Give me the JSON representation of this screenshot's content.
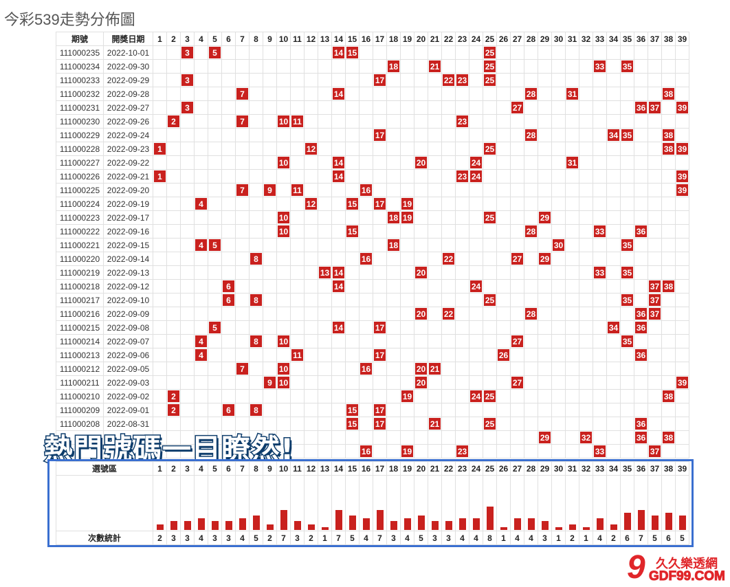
{
  "title": "今彩539走勢分佈圖",
  "table": {
    "headers": {
      "issue": "期號",
      "date": "開獎日期"
    },
    "numbers": [
      1,
      2,
      3,
      4,
      5,
      6,
      7,
      8,
      9,
      10,
      11,
      12,
      13,
      14,
      15,
      16,
      17,
      18,
      19,
      20,
      21,
      22,
      23,
      24,
      25,
      26,
      27,
      28,
      29,
      30,
      31,
      32,
      33,
      34,
      35,
      36,
      37,
      38,
      39
    ],
    "rows": [
      {
        "issue": "111000235",
        "date": "2022-10-01",
        "numbers": [
          3,
          5,
          14,
          15,
          25
        ]
      },
      {
        "issue": "111000234",
        "date": "2022-09-30",
        "numbers": [
          18,
          21,
          25,
          33,
          35
        ]
      },
      {
        "issue": "111000233",
        "date": "2022-09-29",
        "numbers": [
          3,
          17,
          22,
          23,
          25
        ]
      },
      {
        "issue": "111000232",
        "date": "2022-09-28",
        "numbers": [
          7,
          14,
          28,
          31,
          38
        ]
      },
      {
        "issue": "111000231",
        "date": "2022-09-27",
        "numbers": [
          3,
          27,
          36,
          37,
          39
        ]
      },
      {
        "issue": "111000230",
        "date": "2022-09-26",
        "numbers": [
          2,
          7,
          10,
          11,
          23
        ]
      },
      {
        "issue": "111000229",
        "date": "2022-09-24",
        "numbers": [
          17,
          28,
          34,
          35,
          38
        ]
      },
      {
        "issue": "111000228",
        "date": "2022-09-23",
        "numbers": [
          1,
          12,
          25,
          38,
          39
        ]
      },
      {
        "issue": "111000227",
        "date": "2022-09-22",
        "numbers": [
          10,
          14,
          20,
          24,
          31
        ]
      },
      {
        "issue": "111000226",
        "date": "2022-09-21",
        "numbers": [
          1,
          14,
          23,
          24,
          39
        ]
      },
      {
        "issue": "111000225",
        "date": "2022-09-20",
        "numbers": [
          7,
          9,
          11,
          16,
          39
        ]
      },
      {
        "issue": "111000224",
        "date": "2022-09-19",
        "numbers": [
          4,
          12,
          15,
          17,
          19
        ]
      },
      {
        "issue": "111000223",
        "date": "2022-09-17",
        "numbers": [
          10,
          18,
          19,
          25,
          29
        ]
      },
      {
        "issue": "111000222",
        "date": "2022-09-16",
        "numbers": [
          10,
          15,
          28,
          33,
          36
        ]
      },
      {
        "issue": "111000221",
        "date": "2022-09-15",
        "numbers": [
          4,
          5,
          18,
          30,
          35
        ]
      },
      {
        "issue": "111000220",
        "date": "2022-09-14",
        "numbers": [
          8,
          16,
          22,
          27,
          29
        ]
      },
      {
        "issue": "111000219",
        "date": "2022-09-13",
        "numbers": [
          13,
          14,
          20,
          33,
          35
        ]
      },
      {
        "issue": "111000218",
        "date": "2022-09-12",
        "numbers": [
          6,
          14,
          24,
          37,
          38
        ]
      },
      {
        "issue": "111000217",
        "date": "2022-09-10",
        "numbers": [
          6,
          8,
          25,
          35,
          37
        ]
      },
      {
        "issue": "111000216",
        "date": "2022-09-09",
        "numbers": [
          20,
          22,
          28,
          36,
          37
        ]
      },
      {
        "issue": "111000215",
        "date": "2022-09-08",
        "numbers": [
          5,
          14,
          17,
          34,
          36
        ]
      },
      {
        "issue": "111000214",
        "date": "2022-09-07",
        "numbers": [
          4,
          8,
          10,
          27,
          35
        ]
      },
      {
        "issue": "111000213",
        "date": "2022-09-06",
        "numbers": [
          4,
          11,
          17,
          26,
          36
        ]
      },
      {
        "issue": "111000212",
        "date": "2022-09-05",
        "numbers": [
          7,
          10,
          16,
          20,
          21
        ]
      },
      {
        "issue": "111000211",
        "date": "2022-09-03",
        "numbers": [
          9,
          10,
          20,
          27,
          39
        ]
      },
      {
        "issue": "111000210",
        "date": "2022-09-02",
        "numbers": [
          2,
          19,
          24,
          25,
          38
        ]
      },
      {
        "issue": "111000209",
        "date": "2022-09-01",
        "numbers": [
          2,
          6,
          8,
          15,
          17
        ]
      },
      {
        "issue": "111000208",
        "date": "2022-08-31",
        "numbers": [
          15,
          17,
          21,
          25,
          36
        ]
      },
      {
        "issue": "",
        "date": "",
        "numbers": [
          29,
          32,
          36,
          38
        ]
      },
      {
        "issue": "",
        "date": "",
        "numbers": [
          16,
          19,
          23,
          33,
          37
        ]
      }
    ]
  },
  "stats": {
    "header_label": "選號區",
    "count_label": "次數統計",
    "bar_color": "#c9211e",
    "counts": [
      2,
      3,
      3,
      4,
      3,
      3,
      4,
      5,
      2,
      7,
      3,
      2,
      1,
      7,
      5,
      4,
      7,
      3,
      4,
      5,
      3,
      3,
      4,
      4,
      8,
      1,
      4,
      4,
      3,
      1,
      2,
      1,
      4,
      2,
      6,
      7,
      5,
      6,
      5
    ]
  },
  "banner": "熱門號碼一目瞭然!",
  "logo": {
    "cn": "久久樂透網",
    "en": "GDF99.COM",
    "mark": "9"
  },
  "colors": {
    "hit": "#c9211e",
    "frame": "#3a6fd0"
  }
}
